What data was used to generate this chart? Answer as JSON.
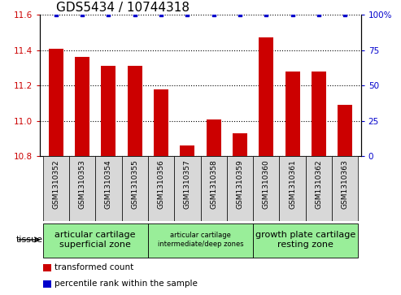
{
  "title": "GDS5434 / 10744318",
  "samples": [
    "GSM1310352",
    "GSM1310353",
    "GSM1310354",
    "GSM1310355",
    "GSM1310356",
    "GSM1310357",
    "GSM1310358",
    "GSM1310359",
    "GSM1310360",
    "GSM1310361",
    "GSM1310362",
    "GSM1310363"
  ],
  "bar_values": [
    11.41,
    11.36,
    11.31,
    11.31,
    11.18,
    10.86,
    11.01,
    10.93,
    11.47,
    11.28,
    11.28,
    11.09
  ],
  "percentile_y": 100,
  "ylim": [
    10.8,
    11.6
  ],
  "yticks": [
    10.8,
    11.0,
    11.2,
    11.4,
    11.6
  ],
  "y2ticks": [
    0,
    25,
    50,
    75,
    100
  ],
  "y2lim": [
    0,
    100
  ],
  "bar_color": "#cc0000",
  "percentile_color": "#0000cc",
  "bar_width": 0.55,
  "xlim_left": -0.6,
  "xlim_right": 11.6,
  "tissue_groups": [
    {
      "label": "articular cartilage\nsuperficial zone",
      "start": 0,
      "end": 3,
      "color": "#99ee99",
      "fontsize": 8
    },
    {
      "label": "articular cartilage\nintermediate/deep zones",
      "start": 4,
      "end": 7,
      "color": "#99ee99",
      "fontsize": 6
    },
    {
      "label": "growth plate cartilage\nresting zone",
      "start": 8,
      "end": 11,
      "color": "#99ee99",
      "fontsize": 8
    }
  ],
  "legend_items": [
    {
      "label": "transformed count",
      "color": "#cc0000"
    },
    {
      "label": "percentile rank within the sample",
      "color": "#0000cc"
    }
  ],
  "tissue_label": "tissue",
  "ylabel_color": "#cc0000",
  "y2label_color": "#0000cc",
  "tick_fontsize": 7.5,
  "sample_fontsize": 6.5,
  "title_fontsize": 11,
  "xticklabel_bg": "#d8d8d8",
  "spine_color": "#000000",
  "grid_linestyle": "dotted",
  "grid_color": "#000000",
  "grid_lw": 0.8
}
